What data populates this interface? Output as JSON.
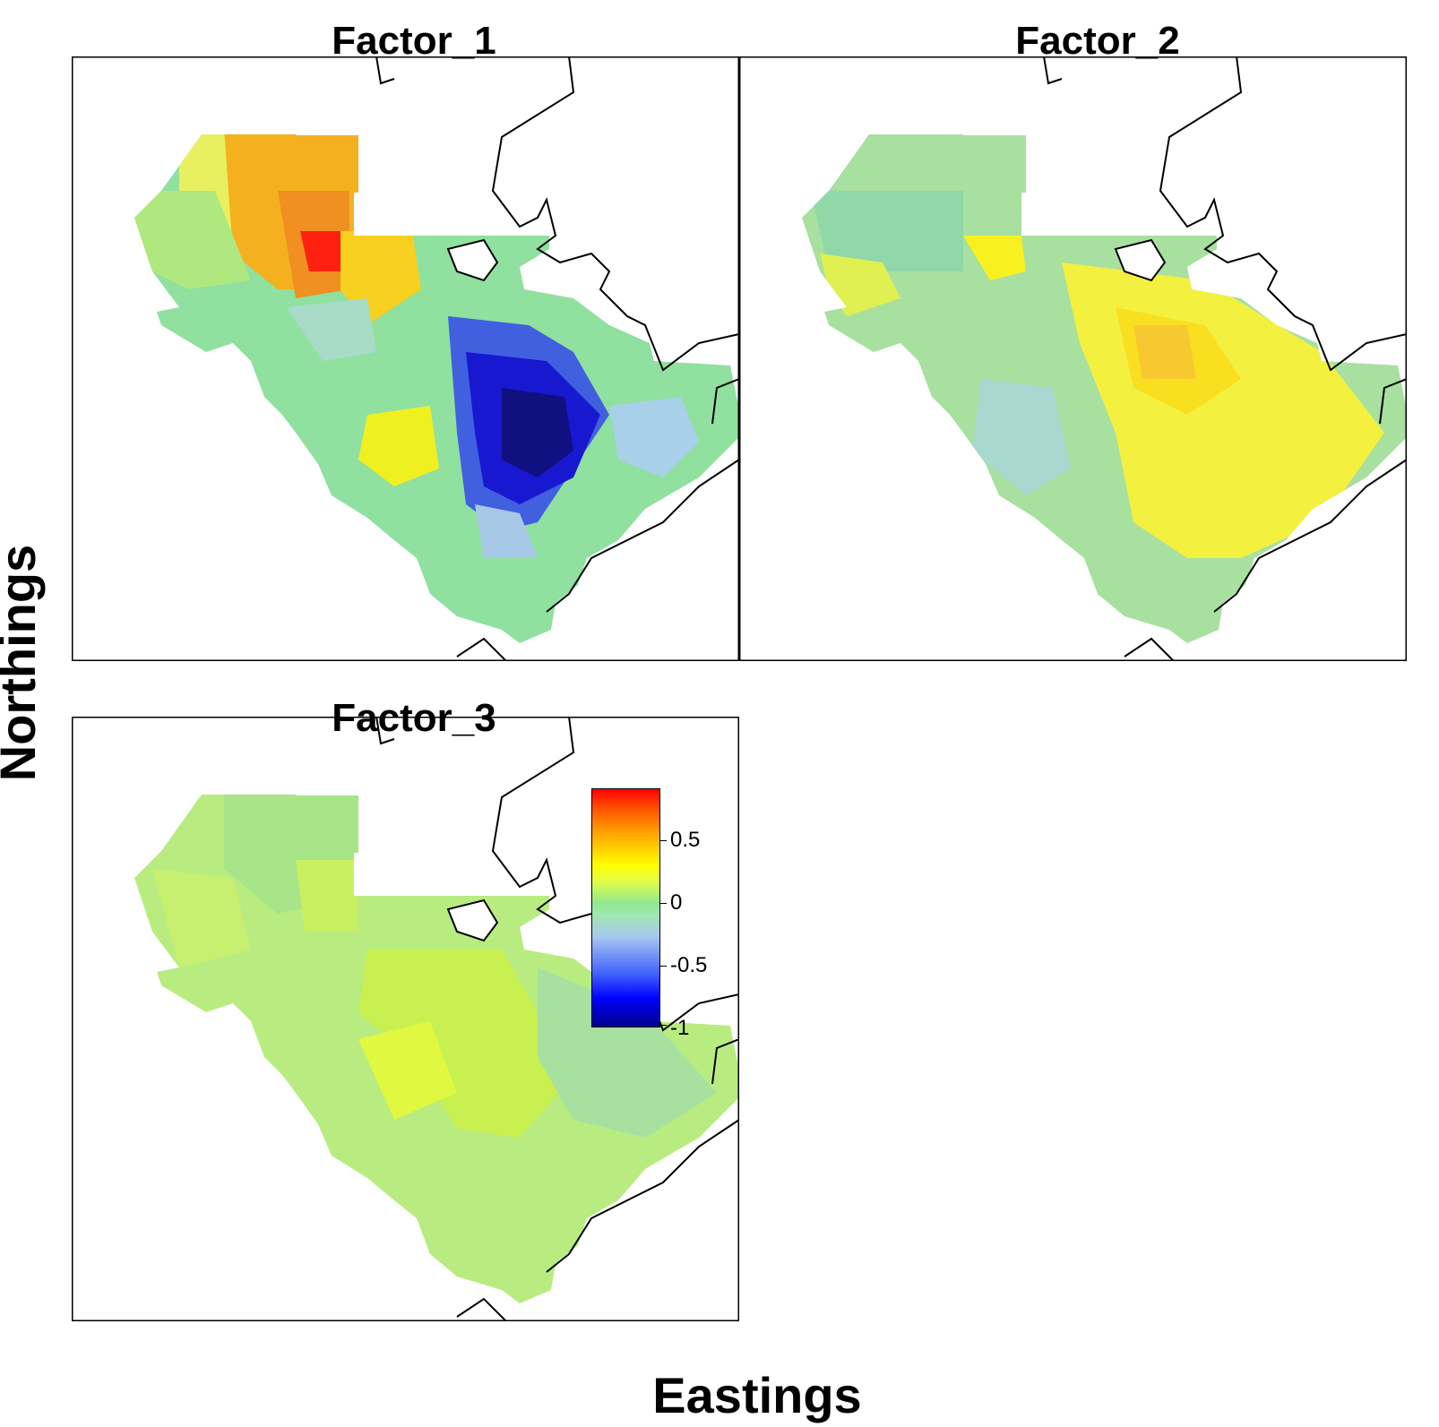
{
  "axes": {
    "xlabel": "Eastings",
    "ylabel": "Northings"
  },
  "panels": [
    {
      "title": "Factor_1"
    },
    {
      "title": "Factor_2"
    },
    {
      "title": "Factor_3"
    }
  ],
  "legend": {
    "ticks": [
      "0.5",
      "0",
      "-0.5",
      "-1"
    ],
    "colors": [
      "#00008b",
      "#0000ff",
      "#a8c8f0",
      "#90e890",
      "#ffff00",
      "#ffa000",
      "#ff0000"
    ]
  }
}
